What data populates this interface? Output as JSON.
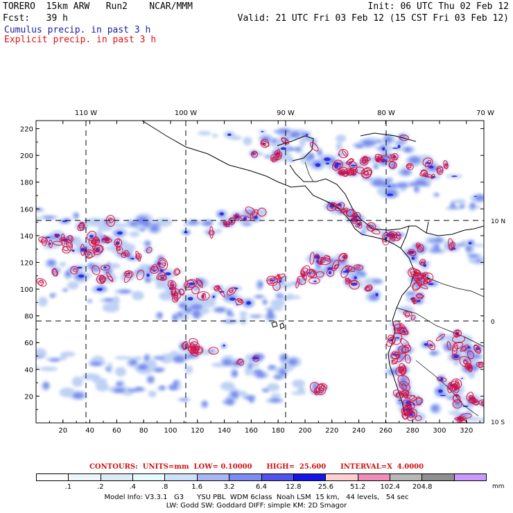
{
  "header": {
    "line1_left": "TORERO  15km ARW   Run2    NCAR/MMM",
    "line1_right": "Init: 06 UTC Thu 02 Feb 12",
    "line2_left": "Fcst:   39 h",
    "line2_right": "Valid: 21 UTC Fri 03 Feb 12 (15 CST Fri 03 Feb 12)",
    "line3": "Cumulus precip. in past 3 h",
    "line4": "Explicit precip. in past 3 h"
  },
  "map": {
    "lon_labels": [
      "110 W",
      "100 W",
      "90 W",
      "80 W",
      "70 W"
    ],
    "lat_labels": [
      "10 N",
      "0",
      "10 S"
    ],
    "y_ticks": [
      "220",
      "200",
      "180",
      "160",
      "140",
      "120",
      "100",
      "80",
      "60",
      "40",
      "20"
    ],
    "x_ticks": [
      "20",
      "40",
      "60",
      "80",
      "100",
      "120",
      "140",
      "160",
      "180",
      "200",
      "220",
      "240",
      "260",
      "280",
      "300",
      "320"
    ],
    "colors": {
      "cumulus_light": "#a9c4ef",
      "cumulus_mid": "#6b7ff0",
      "cumulus_dark": "#2222ee",
      "explicit_contour": "#e0103a",
      "coast": "#000000"
    }
  },
  "legend": {
    "title": "CONTOURS:  UNITS=mm  LOW= 0.10000      HIGH=  25.600      INTERVAL=X  4.0000",
    "labels": [
      ".1",
      ".2",
      ".4",
      ".8",
      "1.6",
      "3.2",
      "6.4",
      "12.8",
      "25.6",
      "51.2",
      "102.4",
      "204.8"
    ],
    "unit": "mm",
    "colors": [
      "#ffffff",
      "#eef6fb",
      "#dcecf7",
      "#e6fbff",
      "#cfe1f9",
      "#a9b8f4",
      "#7d8cf2",
      "#5252ee",
      "#1515e8",
      "#ffd0d0",
      "#f08cb8",
      "#b8b8b8",
      "#8f8f8f",
      "#cc99ff"
    ]
  },
  "footer": {
    "line1": "Model Info: V3.3.1   G3      YSU PBL  WDM 6class  Noah LSM  15 km,   44 levels,   54 sec",
    "line2": "LW: Godd SW: Goddard DIFF: simple KM: 2D Smagor"
  }
}
